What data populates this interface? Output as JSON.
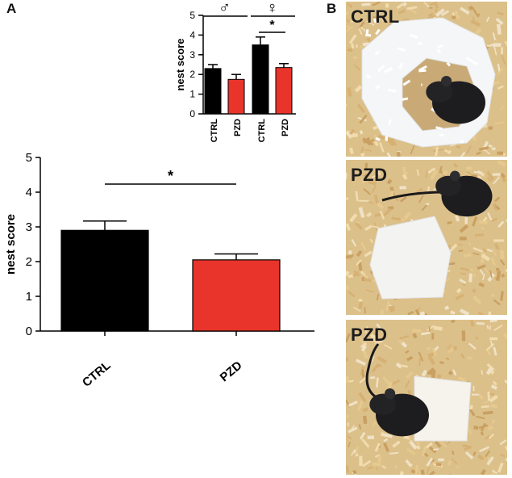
{
  "panels": {
    "a": "A",
    "b": "B"
  },
  "chart_data": [
    {
      "type": "bar",
      "title": "",
      "categories": [
        "CTRL",
        "PZD"
      ],
      "values": [
        2.9,
        2.05
      ],
      "errors": [
        0.27,
        0.17
      ],
      "colors": [
        "#000000",
        "#e8342a"
      ],
      "ylabel": "nest score",
      "ylim": [
        0,
        5
      ],
      "yticks": [
        0,
        1,
        2,
        3,
        4,
        5
      ],
      "significance": [
        {
          "between": [
            0,
            1
          ],
          "label": "*"
        }
      ]
    },
    {
      "type": "bar",
      "title": "",
      "categories": [
        "CTRL",
        "PZD",
        "CTRL",
        "PZD"
      ],
      "groups": [
        {
          "label": "♂",
          "indices": [
            0,
            1
          ]
        },
        {
          "label": "♀",
          "indices": [
            2,
            3
          ]
        }
      ],
      "values": [
        2.3,
        1.75,
        3.5,
        2.35
      ],
      "errors": [
        0.2,
        0.25,
        0.4,
        0.2
      ],
      "colors": [
        "#000000",
        "#e8342a",
        "#000000",
        "#e8342a"
      ],
      "ylabel": "nest score",
      "ylim": [
        0,
        5
      ],
      "yticks": [
        0,
        1,
        2,
        3,
        4,
        5
      ],
      "significance": [
        {
          "between": [
            2,
            3
          ],
          "label": "*"
        }
      ]
    }
  ],
  "photos": [
    {
      "label": "CTRL",
      "scene": "nest-built"
    },
    {
      "label": "PZD",
      "scene": "nest-intact"
    },
    {
      "label": "PZD",
      "scene": "nest-intact"
    }
  ]
}
